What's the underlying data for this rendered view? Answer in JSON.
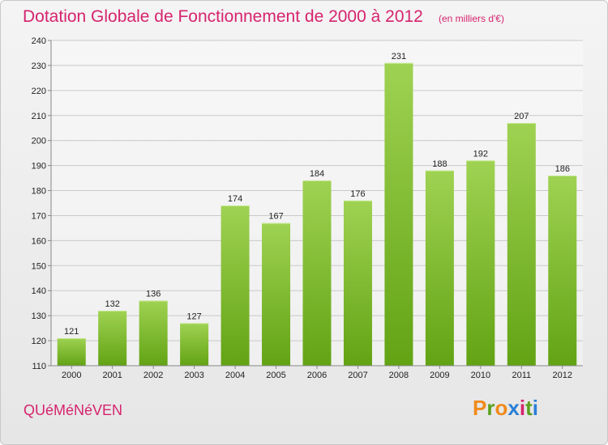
{
  "header": {
    "title": "Dotation Globale de Fonctionnement de 2000 à 2012",
    "unit": "(en milliers d'€)"
  },
  "footer": {
    "commune": "QUéMéNéVEN",
    "logo": [
      "P",
      "r",
      "o",
      "x",
      "i",
      "t",
      "i"
    ]
  },
  "colors": {
    "bar_light": "#9fd252",
    "bar_dark": "#62a314",
    "title": "#d6246e",
    "logo": [
      "#f08a1c",
      "#5aa01e",
      "#f08a1c",
      "#2a7fd6",
      "#d6246e",
      "#5aa01e",
      "#2a7fd6"
    ]
  },
  "chart_data": {
    "type": "bar",
    "title": "Dotation Globale de Fonctionnement de 2000 à 2012",
    "categories": [
      "2000",
      "2001",
      "2002",
      "2003",
      "2004",
      "2005",
      "2006",
      "2007",
      "2008",
      "2009",
      "2010",
      "2011",
      "2012"
    ],
    "values": [
      121,
      132,
      136,
      127,
      174,
      167,
      184,
      176,
      231,
      188,
      192,
      207,
      186
    ],
    "yticks": [
      110,
      120,
      130,
      140,
      150,
      160,
      170,
      180,
      190,
      200,
      210,
      220,
      230,
      240
    ],
    "ylim": [
      110,
      240
    ],
    "grid": true
  }
}
